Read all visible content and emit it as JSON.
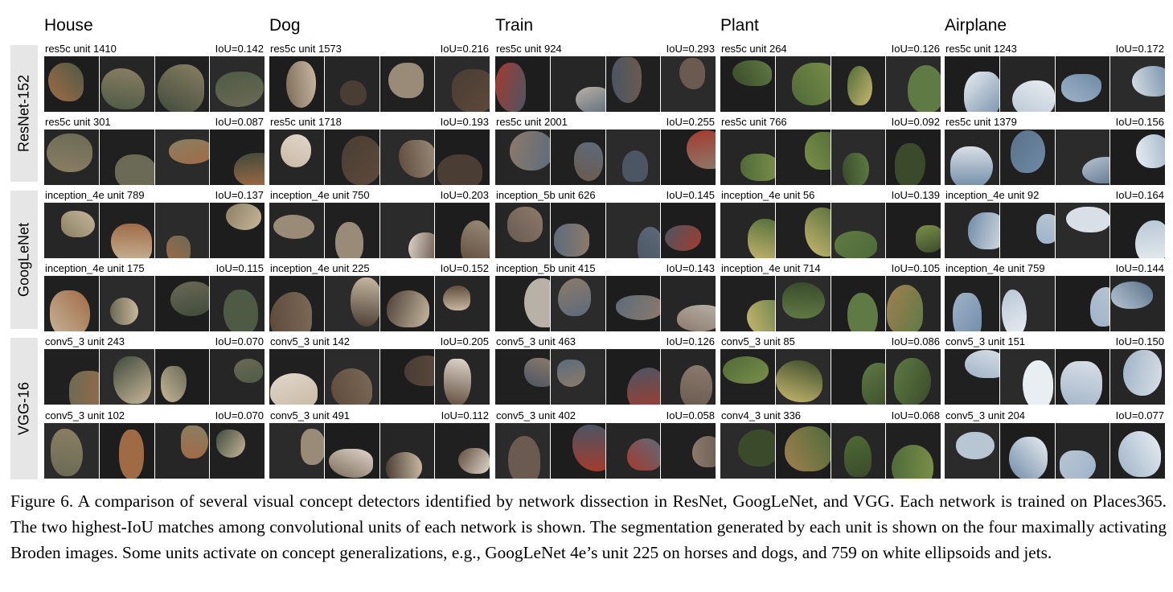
{
  "columns": [
    "House",
    "Dog",
    "Train",
    "Plant",
    "Airplane"
  ],
  "networks": [
    {
      "name": "ResNet-152",
      "rows": [
        [
          {
            "unit": "res5c unit 1410",
            "iou": "IoU=0.142"
          },
          {
            "unit": "res5c unit 1573",
            "iou": "IoU=0.216"
          },
          {
            "unit": "res5c unit 924",
            "iou": "IoU=0.293"
          },
          {
            "unit": "res5c unit 264",
            "iou": "IoU=0.126"
          },
          {
            "unit": "res5c unit 1243",
            "iou": "IoU=0.172"
          }
        ],
        [
          {
            "unit": "res5c unit 301",
            "iou": "IoU=0.087"
          },
          {
            "unit": "res5c unit 1718",
            "iou": "IoU=0.193"
          },
          {
            "unit": "res5c unit 2001",
            "iou": "IoU=0.255"
          },
          {
            "unit": "res5c unit 766",
            "iou": "IoU=0.092"
          },
          {
            "unit": "res5c unit 1379",
            "iou": "IoU=0.156"
          }
        ]
      ]
    },
    {
      "name": "GoogLeNet",
      "rows": [
        [
          {
            "unit": "inception_4e unit 789",
            "iou": "IoU=0.137"
          },
          {
            "unit": "inception_4e unit 750",
            "iou": "IoU=0.203"
          },
          {
            "unit": "inception_5b unit 626",
            "iou": "IoU=0.145"
          },
          {
            "unit": "inception_4e unit 56",
            "iou": "IoU=0.139"
          },
          {
            "unit": "inception_4e unit 92",
            "iou": "IoU=0.164"
          }
        ],
        [
          {
            "unit": "inception_4e unit 175",
            "iou": "IoU=0.115"
          },
          {
            "unit": "inception_4e unit 225",
            "iou": "IoU=0.152"
          },
          {
            "unit": "inception_5b unit 415",
            "iou": "IoU=0.143"
          },
          {
            "unit": "inception_4e unit 714",
            "iou": "IoU=0.105"
          },
          {
            "unit": "inception_4e unit 759",
            "iou": "IoU=0.144"
          }
        ]
      ]
    },
    {
      "name": "VGG-16",
      "rows": [
        [
          {
            "unit": "conv5_3 unit 243",
            "iou": "IoU=0.070"
          },
          {
            "unit": "conv5_3 unit 142",
            "iou": "IoU=0.205"
          },
          {
            "unit": "conv5_3 unit 463",
            "iou": "IoU=0.126"
          },
          {
            "unit": "conv5_3 unit 85",
            "iou": "IoU=0.086"
          },
          {
            "unit": "conv5_3 unit 151",
            "iou": "IoU=0.150"
          }
        ],
        [
          {
            "unit": "conv5_3 unit 102",
            "iou": "IoU=0.070"
          },
          {
            "unit": "conv5_3 unit 491",
            "iou": "IoU=0.112"
          },
          {
            "unit": "conv5_3 unit 402",
            "iou": "IoU=0.058"
          },
          {
            "unit": "conv4_3 unit 336",
            "iou": "IoU=0.068"
          },
          {
            "unit": "conv5_3 unit 204",
            "iou": "IoU=0.077"
          }
        ]
      ]
    }
  ],
  "caption": "Figure 6. A comparison of several visual concept detectors identified by network dissection in ResNet, GoogLeNet, and VGG. Each network is trained on Places365. The two highest-IoU matches among convolutional units of each network is shown. The segmentation generated by each unit is shown on the four maximally activating Broden images. Some units activate on concept generalizations, e.g., GoogLeNet 4e’s unit 225 on horses and dogs, and 759 on white ellipsoids and jets."
}
